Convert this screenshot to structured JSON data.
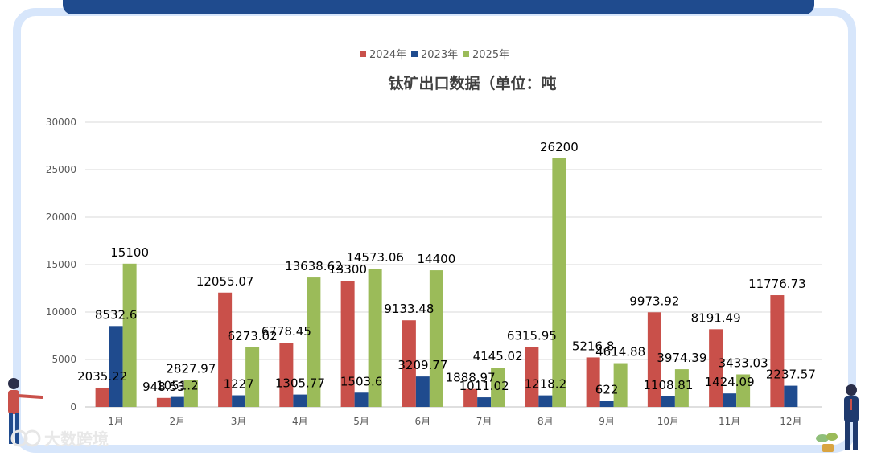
{
  "chart_data": {
    "type": "bar",
    "title": "钛矿出口数据（单位：吨",
    "categories": [
      "1月",
      "2月",
      "3月",
      "4月",
      "5月",
      "6月",
      "7月",
      "8月",
      "9月",
      "10月",
      "11月",
      "12月"
    ],
    "series": [
      {
        "name": "2024年",
        "color": "#c9504a",
        "values": [
          2035.22,
          948.53,
          12055.07,
          6778.45,
          13300,
          9133.48,
          1888.97,
          6315.95,
          5216.8,
          9973.92,
          8191.49,
          11776.73
        ]
      },
      {
        "name": "2023年",
        "color": "#1f4b8e",
        "values": [
          8532.6,
          1051.2,
          1227,
          1305.77,
          1503.6,
          3209.77,
          1011.02,
          1218.2,
          622,
          1108.81,
          1424.09,
          2237.57
        ]
      },
      {
        "name": "2025年",
        "color": "#9bbb59",
        "values": [
          15100,
          2827.97,
          6273.02,
          13638.62,
          14573.06,
          14400,
          4145.02,
          26200,
          4614.88,
          3974.39,
          3433.03,
          null
        ]
      }
    ],
    "yticks": [
      0,
      5000,
      10000,
      15000,
      20000,
      25000,
      30000
    ],
    "ylim": [
      0,
      30000
    ],
    "legend_position": "top-center",
    "grid": true
  },
  "watermark": "大数跨境"
}
